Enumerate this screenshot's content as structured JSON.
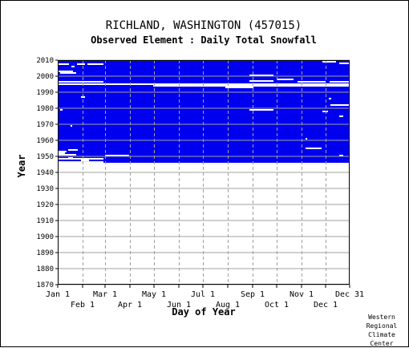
{
  "chart_data": {
    "type": "heatmap",
    "title": "RICHLAND, WASHINGTON   (457015)",
    "subtitle": "Observed Element : Daily Total Snowfall",
    "xlabel": "Day of Year",
    "ylabel": "Year",
    "ylim": [
      1870,
      2010
    ],
    "y_ticks": [
      2010,
      2000,
      1990,
      1980,
      1970,
      1960,
      1950,
      1940,
      1930,
      1920,
      1910,
      1900,
      1890,
      1880,
      1870
    ],
    "x_ticks_top_row": [
      "Jan 1",
      "Mar 1",
      "May 1",
      "Jul 1",
      "Sep 1",
      "Nov 1",
      "Dec 31"
    ],
    "x_ticks_bottom_row": [
      "Feb 1",
      "Apr 1",
      "Jun 1",
      "Aug 1",
      "Oct 1",
      "Dec 1"
    ],
    "data_color": "#0000ee",
    "data_coverage": {
      "full_from_year": 1947,
      "partial_start_day_1946": 58,
      "end_year": 2010
    },
    "missing_segments": [
      {
        "year": 2007.5,
        "start_day": 1,
        "end_day": 15
      },
      {
        "year": 2006,
        "start_day": 18,
        "end_day": 22
      },
      {
        "year": 2007.5,
        "start_day": 25,
        "end_day": 35
      },
      {
        "year": 2007.5,
        "start_day": 38,
        "end_day": 58
      },
      {
        "year": 2003,
        "start_day": 1,
        "end_day": 20
      },
      {
        "year": 2002,
        "start_day": 4,
        "end_day": 24
      },
      {
        "year": 1996.5,
        "start_day": 1,
        "end_day": 58
      },
      {
        "year": 1995,
        "start_day": 1,
        "end_day": 365
      },
      {
        "year": 1994,
        "start_day": 120,
        "end_day": 365
      },
      {
        "year": 1993,
        "start_day": 210,
        "end_day": 245
      },
      {
        "year": 1998,
        "start_day": 275,
        "end_day": 295
      },
      {
        "year": 2000.5,
        "start_day": 240,
        "end_day": 270
      },
      {
        "year": 1997,
        "start_day": 240,
        "end_day": 270
      },
      {
        "year": 1996.5,
        "start_day": 300,
        "end_day": 335
      },
      {
        "year": 1996.5,
        "start_day": 340,
        "end_day": 365
      },
      {
        "year": 2010,
        "start_day": 335,
        "end_day": 365
      },
      {
        "year": 2009,
        "start_day": 331,
        "end_day": 348
      },
      {
        "year": 2008,
        "start_day": 352,
        "end_day": 365
      },
      {
        "year": 1987,
        "start_day": 30,
        "end_day": 35
      },
      {
        "year": 1979,
        "start_day": 240,
        "end_day": 270
      },
      {
        "year": 1978,
        "start_day": 331,
        "end_day": 338
      },
      {
        "year": 1982,
        "start_day": 341,
        "end_day": 365
      },
      {
        "year": 1986,
        "start_day": 339,
        "end_day": 342
      },
      {
        "year": 1975,
        "start_day": 352,
        "end_day": 357
      },
      {
        "year": 1979,
        "start_day": 4,
        "end_day": 7
      },
      {
        "year": 1969,
        "start_day": 17,
        "end_day": 19
      },
      {
        "year": 1955,
        "start_day": 310,
        "end_day": 330
      },
      {
        "year": 1961,
        "start_day": 310,
        "end_day": 312
      },
      {
        "year": 1954,
        "start_day": 14,
        "end_day": 26
      },
      {
        "year": 1953,
        "start_day": 1,
        "end_day": 12
      },
      {
        "year": 1952,
        "start_day": 1,
        "end_day": 10
      },
      {
        "year": 1951,
        "start_day": 1,
        "end_day": 24
      },
      {
        "year": 1949,
        "start_day": 14,
        "end_day": 20
      },
      {
        "year": 1950.5,
        "start_day": 60,
        "end_day": 90
      },
      {
        "year": 1948.5,
        "start_day": 1,
        "end_day": 58
      },
      {
        "year": 1950.5,
        "start_day": 352,
        "end_day": 357
      },
      {
        "year": 1947.5,
        "start_day": 30,
        "end_day": 40
      }
    ]
  },
  "credit": [
    "Western",
    "Regional",
    "Climate",
    "Center"
  ]
}
